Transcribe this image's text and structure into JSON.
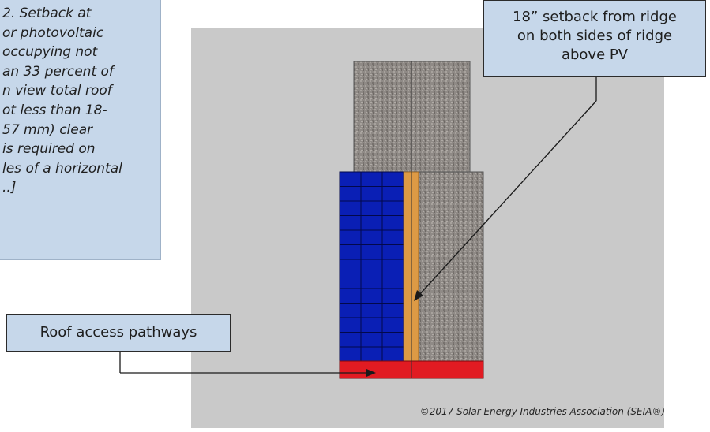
{
  "code_excerpt": {
    "lines": [
      "2. Setback at",
      "or photovoltaic",
      "occupying not",
      "an 33 percent of",
      "n view total roof",
      "ot less than 18-",
      "57 mm) clear",
      "is required on",
      "les of a horizontal",
      "..]"
    ]
  },
  "callouts": {
    "setback": {
      "lines": [
        "18” setback from ridge",
        "on both sides of ridge",
        "above PV"
      ]
    },
    "pathways": {
      "label": "Roof access pathways"
    }
  },
  "copyright": "©2017 Solar Energy Industries Association (SEIA®)",
  "colors": {
    "background_panel": "#c9c9c9",
    "callout_fill": "#c6d7ea",
    "roof_shingle": "#8f8a86",
    "pv_panels": "#0a1fb5",
    "ridge_setback": "#dd9a45",
    "access_pathway": "#e11b22"
  },
  "icons": [
    "arrow-icon"
  ]
}
